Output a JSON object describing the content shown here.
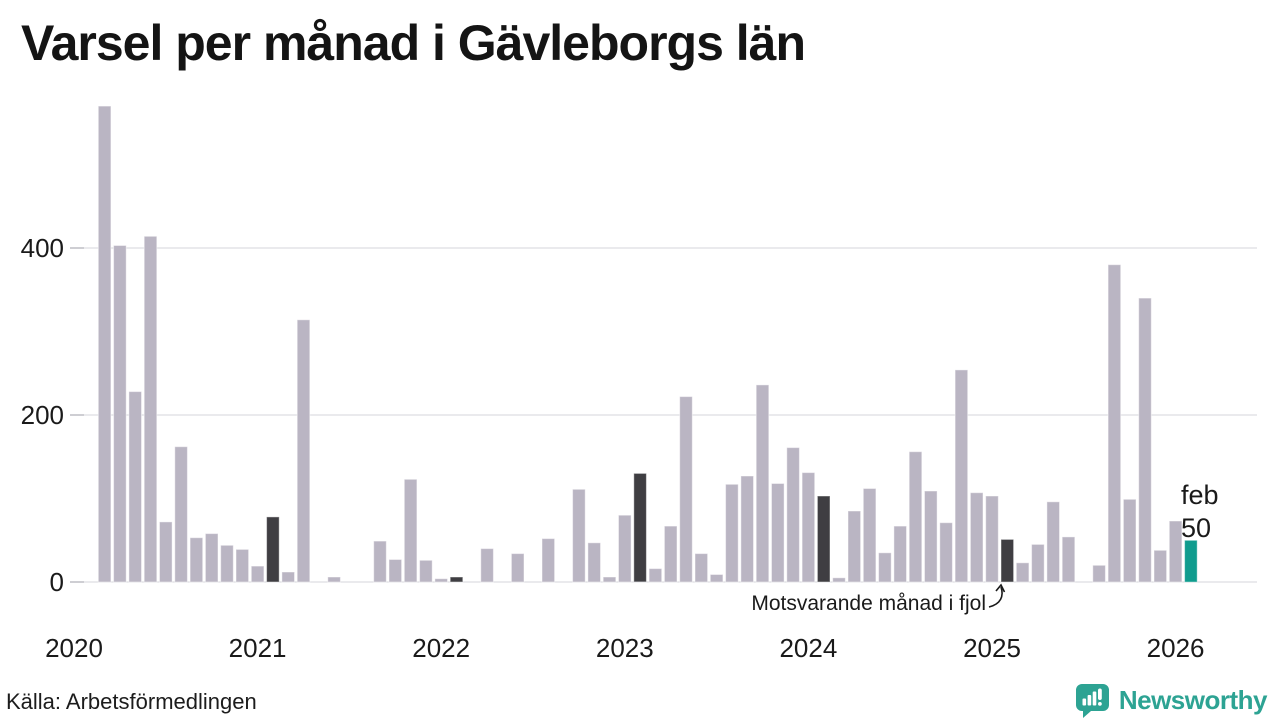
{
  "title": "Varsel per månad i Gävleborgs län",
  "annotation": {
    "text": "Motsvarande månad i fjol"
  },
  "current_label": {
    "line1": "feb",
    "line2": "50"
  },
  "footer": {
    "source": "Källa: Arbetsförmedlingen",
    "brand": "Newsworthy"
  },
  "colors": {
    "bar": "#bab5c3",
    "bar_dark": "#3f3e42",
    "bar_teal": "#0f9c8e",
    "grid": "#dedee2",
    "tick": "#c4c4ca",
    "axis_text": "#1a1a1a",
    "brand_teal": "#2da393"
  },
  "chart_data": {
    "type": "bar",
    "title": "Varsel per månad i Gävleborgs län",
    "x_unit": "month",
    "start": "2020-01",
    "end": "2026-02",
    "labels": [
      "2020-01",
      "2020-02",
      "2020-03",
      "2020-04",
      "2020-05",
      "2020-06",
      "2020-07",
      "2020-08",
      "2020-09",
      "2020-10",
      "2020-11",
      "2020-12",
      "2021-01",
      "2021-02",
      "2021-03",
      "2021-04",
      "2021-05",
      "2021-06",
      "2021-07",
      "2021-08",
      "2021-09",
      "2021-10",
      "2021-11",
      "2021-12",
      "2022-01",
      "2022-02",
      "2022-03",
      "2022-04",
      "2022-05",
      "2022-06",
      "2022-07",
      "2022-08",
      "2022-09",
      "2022-10",
      "2022-11",
      "2022-12",
      "2023-01",
      "2023-02",
      "2023-03",
      "2023-04",
      "2023-05",
      "2023-06",
      "2023-07",
      "2023-08",
      "2023-09",
      "2023-10",
      "2023-11",
      "2023-12",
      "2024-01",
      "2024-02",
      "2024-03",
      "2024-04",
      "2024-05",
      "2024-06",
      "2024-07",
      "2024-08",
      "2024-09",
      "2024-10",
      "2024-11",
      "2024-12",
      "2025-01",
      "2025-02",
      "2025-03",
      "2025-04",
      "2025-05",
      "2025-06",
      "2025-07",
      "2025-08",
      "2025-09",
      "2025-10",
      "2025-11",
      "2025-12",
      "2026-01",
      "2026-02"
    ],
    "values": [
      0,
      0,
      570,
      403,
      228,
      414,
      72,
      162,
      53,
      58,
      44,
      39,
      19,
      78,
      12,
      314,
      0,
      6,
      0,
      0,
      49,
      27,
      123,
      26,
      4,
      6,
      0,
      40,
      0,
      34,
      0,
      52,
      0,
      111,
      47,
      6,
      80,
      130,
      16,
      67,
      222,
      34,
      9,
      117,
      127,
      236,
      118,
      161,
      131,
      103,
      5,
      85,
      112,
      35,
      67,
      156,
      109,
      71,
      254,
      107,
      103,
      51,
      23,
      45,
      96,
      54,
      0,
      20,
      380,
      99,
      340,
      38,
      73,
      50
    ],
    "dark_indices": [
      13,
      25,
      37,
      49,
      61
    ],
    "teal_index": 73,
    "year_ticks": [
      "2020",
      "2021",
      "2022",
      "2023",
      "2024",
      "2025",
      "2026"
    ],
    "y_ticks": [
      0,
      200,
      400
    ],
    "ylim": [
      0,
      580
    ],
    "grid": true,
    "legend": false,
    "highlight_note": "Motsvarande månad i fjol",
    "latest_point": {
      "label": "feb",
      "value": 50
    }
  }
}
